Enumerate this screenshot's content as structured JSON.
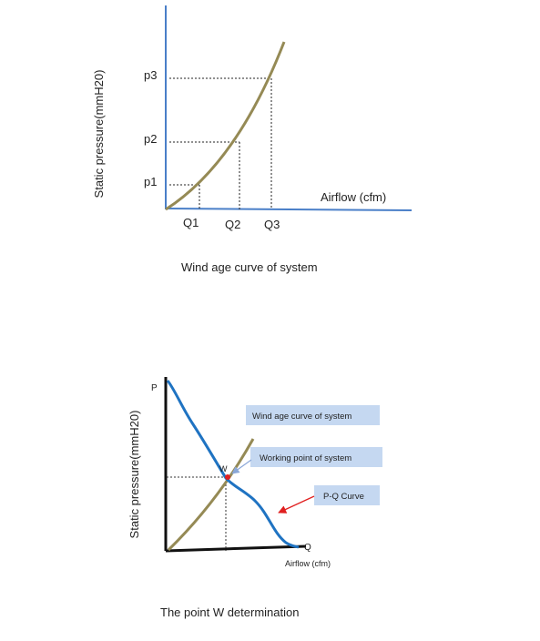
{
  "top": {
    "ylabel": "Static pressure(mmH20)",
    "xlabel": "Airflow (cfm)",
    "y_ticks": [
      "p3",
      "p2",
      "p1"
    ],
    "x_ticks": [
      "Q1",
      "Q2",
      "Q3"
    ],
    "caption": "Wind age curve of system"
  },
  "bottom": {
    "ylabel": "Static pressure(mmH20)",
    "y_marker": "P",
    "x_marker": "Q",
    "xlabel": "Airflow (cfm)",
    "point_label": "W",
    "callouts": [
      "Wind age curve of system",
      "Working point of system",
      "P-Q Curve"
    ],
    "caption": "The point W  determination"
  },
  "colors": {
    "axis_top": "#4a7fc8",
    "system_curve": "#958a55",
    "pq_curve": "#1f73c2",
    "callout_bg": "#c5d8f1",
    "point": "#e02020",
    "arrow": "#e02020"
  }
}
